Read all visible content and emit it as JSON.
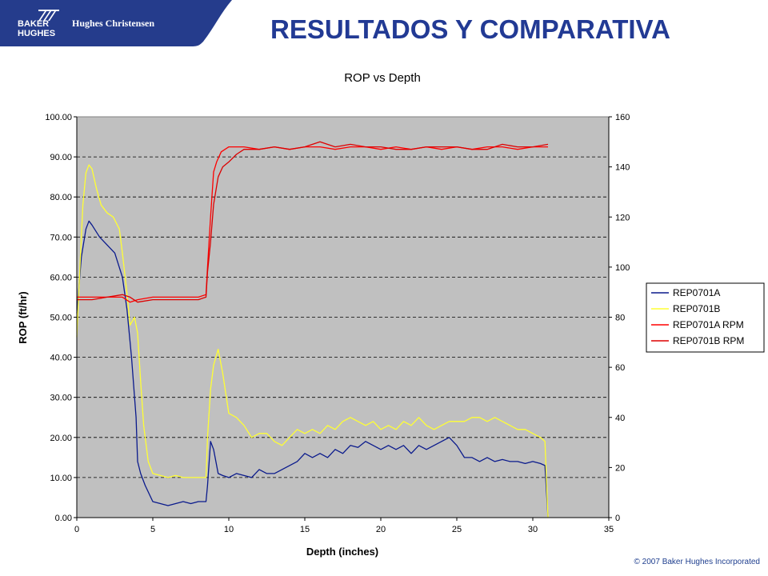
{
  "header": {
    "logo_line1": "BAKER",
    "logo_line2": "HUGHES",
    "logo_brand": "Hughes Christensen",
    "title": "RESULTADOS Y COMPARATIVA"
  },
  "footer": {
    "copyright": "© 2007 Baker Hughes Incorporated"
  },
  "colors": {
    "banner": "#253c8c",
    "title": "#223a94",
    "plot_bg": "#c0c0c0",
    "series_a": "#0a1a8c",
    "series_b": "#ffff33",
    "series_a_rpm": "#ff0000",
    "series_b_rpm": "#dd0000"
  },
  "chart_data": {
    "type": "line",
    "title": "ROP vs Depth",
    "xlabel": "Depth (inches)",
    "ylabel": "ROP (ft/hr)",
    "y2label": "",
    "xlim": [
      0,
      35
    ],
    "ylim": [
      0,
      100
    ],
    "y2lim": [
      0,
      160
    ],
    "x_ticks": [
      "0",
      "5",
      "10",
      "15",
      "20",
      "25",
      "30",
      "35"
    ],
    "y_ticks": [
      "0.00",
      "10.00",
      "20.00",
      "30.00",
      "40.00",
      "50.00",
      "60.00",
      "70.00",
      "80.00",
      "90.00",
      "100.00"
    ],
    "y2_ticks": [
      "0",
      "20",
      "40",
      "60",
      "80",
      "100",
      "120",
      "140",
      "160"
    ],
    "grid": "horizontal-dashed",
    "legend": "right",
    "series": [
      {
        "name": "REP0701A",
        "axis": "left",
        "color": "#0a1a8c",
        "x": [
          0,
          0.3,
          0.6,
          0.8,
          1.0,
          1.5,
          2.0,
          2.5,
          3.0,
          3.3,
          3.6,
          3.9,
          4.0,
          4.2,
          4.5,
          5.0,
          5.5,
          6.0,
          6.5,
          7.0,
          7.5,
          8.0,
          8.5,
          8.6,
          8.8,
          9.0,
          9.3,
          9.6,
          10,
          10.5,
          11,
          11.5,
          12,
          12.5,
          13,
          13.5,
          14,
          14.5,
          15,
          15.5,
          16,
          16.5,
          17,
          17.5,
          18,
          18.5,
          19,
          19.5,
          20,
          20.5,
          21,
          21.5,
          22,
          22.5,
          23,
          23.5,
          24,
          24.5,
          25,
          25.5,
          26,
          26.5,
          27,
          27.5,
          28,
          28.5,
          29,
          29.5,
          30,
          30.5,
          30.8,
          31.0
        ],
        "y": [
          51,
          65,
          72,
          74,
          73,
          70,
          68,
          66,
          60,
          52,
          40,
          25,
          14,
          11,
          8,
          4,
          3.5,
          3,
          3.5,
          4,
          3.5,
          4,
          4,
          8,
          19,
          17,
          11,
          10.5,
          10,
          11,
          10.5,
          10,
          12,
          11,
          11,
          12,
          13,
          14,
          16,
          15,
          16,
          15,
          17,
          16,
          18,
          17.5,
          19,
          18,
          17,
          18,
          17,
          18,
          16,
          18,
          17,
          18,
          19,
          20,
          18,
          15,
          15,
          14,
          15,
          14,
          14.5,
          14,
          14,
          13.5,
          14,
          13.5,
          13,
          0
        ]
      },
      {
        "name": "REP0701B",
        "axis": "left",
        "color": "#ffff33",
        "x": [
          0,
          0.2,
          0.4,
          0.6,
          0.8,
          1.0,
          1.3,
          1.6,
          2.0,
          2.4,
          2.8,
          3.0,
          3.3,
          3.5,
          3.8,
          4.0,
          4.2,
          4.4,
          4.7,
          5.0,
          5.5,
          6.0,
          6.5,
          7.0,
          7.5,
          8.0,
          8.5,
          8.6,
          8.8,
          9.0,
          9.3,
          9.6,
          10,
          10.5,
          11,
          11.5,
          12,
          12.5,
          13,
          13.5,
          14,
          14.5,
          15,
          15.5,
          16,
          16.5,
          17,
          17.5,
          18,
          18.5,
          19,
          19.5,
          20,
          20.5,
          21,
          21.5,
          22,
          22.5,
          23,
          23.5,
          24,
          24.5,
          25,
          25.5,
          26,
          26.5,
          27,
          27.5,
          28,
          28.5,
          29,
          29.5,
          30,
          30.5,
          30.8,
          31.0
        ],
        "y": [
          45,
          62,
          78,
          86,
          88,
          87,
          82,
          78,
          76,
          75,
          72,
          66,
          56,
          48,
          50,
          46,
          34,
          23,
          14,
          11,
          10.5,
          10,
          10.5,
          10,
          10,
          10,
          10,
          20,
          32,
          38,
          42,
          36,
          26,
          25,
          23,
          20,
          21,
          21,
          19,
          18,
          20,
          22,
          21,
          22,
          21,
          23,
          22,
          24,
          25,
          24,
          23,
          24,
          22,
          23,
          22,
          24,
          23,
          25,
          23,
          22,
          23,
          24,
          24,
          24,
          25,
          25,
          24,
          25,
          24,
          23,
          22,
          22,
          21,
          20,
          19,
          0
        ]
      },
      {
        "name": "REP0701A RPM",
        "axis": "right",
        "color": "#ff0000",
        "x": [
          0,
          1,
          2,
          3,
          3.5,
          4,
          5,
          6,
          7,
          8,
          8.5,
          8.6,
          8.8,
          9.0,
          9.2,
          9.5,
          10,
          11,
          12,
          13,
          14,
          15,
          16,
          17,
          18,
          19,
          20,
          21,
          22,
          23,
          24,
          25,
          26,
          27,
          28,
          29,
          30,
          31
        ],
        "y": [
          88,
          88,
          88,
          88,
          86,
          87,
          88,
          88,
          88,
          88,
          89,
          100,
          120,
          138,
          142,
          146,
          148,
          148,
          147,
          148,
          147,
          148,
          148,
          147,
          148,
          148,
          147,
          148,
          147,
          148,
          147,
          148,
          147,
          148,
          148,
          147,
          148,
          148
        ]
      },
      {
        "name": "REP0701B RPM",
        "axis": "right",
        "color": "#dd0000",
        "x": [
          0,
          1,
          2,
          3,
          3.5,
          4,
          5,
          6,
          7,
          8,
          8.5,
          8.6,
          8.8,
          9.0,
          9.3,
          9.6,
          10,
          10.5,
          11,
          12,
          13,
          14,
          15,
          16,
          17,
          18,
          19,
          20,
          21,
          22,
          23,
          24,
          25,
          26,
          27,
          28,
          29,
          30,
          31
        ],
        "y": [
          87,
          87,
          88,
          89,
          88,
          86,
          87,
          87,
          87,
          87,
          88,
          98,
          110,
          125,
          136,
          140,
          142,
          145,
          147,
          147,
          148,
          147,
          148,
          150,
          148,
          149,
          148,
          148,
          147,
          147,
          148,
          148,
          148,
          147,
          147,
          149,
          148,
          148,
          149
        ]
      }
    ]
  }
}
